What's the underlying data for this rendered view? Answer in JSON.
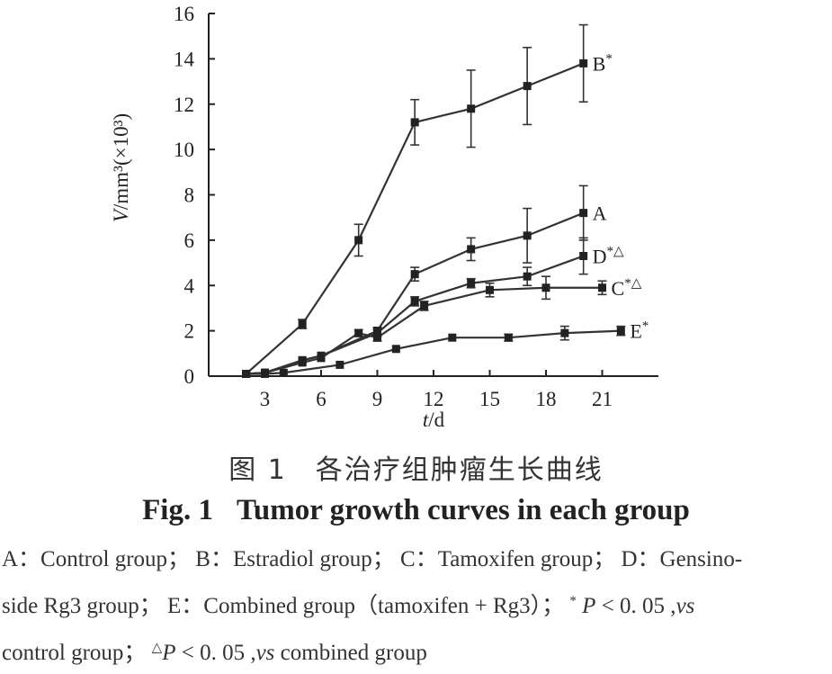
{
  "chart_data": {
    "type": "line",
    "xlabel": "t/d",
    "ylabel": "V/mm³(×10³)",
    "xlim": [
      0,
      24
    ],
    "ylim": [
      0,
      16
    ],
    "xticks": [
      3,
      6,
      9,
      12,
      15,
      18,
      21
    ],
    "yticks": [
      0,
      2,
      4,
      6,
      8,
      10,
      12,
      14,
      16
    ],
    "grid": false,
    "series": [
      {
        "name": "B*",
        "x": [
          2,
          5,
          8,
          11,
          14,
          17,
          20
        ],
        "y": [
          0.1,
          2.3,
          6.0,
          11.2,
          11.8,
          12.8,
          13.8
        ],
        "err": [
          0.1,
          0.2,
          0.7,
          1.0,
          1.7,
          1.7,
          1.7
        ]
      },
      {
        "name": "A",
        "x": [
          2,
          3,
          5,
          6,
          9,
          11,
          14,
          17,
          20
        ],
        "y": [
          0.1,
          0.15,
          0.7,
          0.9,
          2.0,
          4.5,
          5.6,
          6.2,
          7.2
        ],
        "err": [
          0.05,
          0.05,
          0.1,
          0.1,
          0.15,
          0.3,
          0.5,
          1.2,
          1.2
        ]
      },
      {
        "name": "D*△",
        "x": [
          2,
          3,
          5,
          6,
          9,
          11,
          14,
          17,
          20
        ],
        "y": [
          0.1,
          0.15,
          0.7,
          0.9,
          1.9,
          3.3,
          4.1,
          4.4,
          5.3
        ],
        "err": [
          0.05,
          0.05,
          0.1,
          0.1,
          0.15,
          0.2,
          0.2,
          0.4,
          0.8
        ]
      },
      {
        "name": "C*△",
        "x": [
          2,
          3,
          5,
          6,
          8,
          9,
          11.5,
          15,
          18,
          21
        ],
        "y": [
          0.1,
          0.15,
          0.6,
          0.8,
          1.9,
          1.7,
          3.1,
          3.8,
          3.9,
          3.9
        ],
        "err": [
          0.05,
          0.05,
          0.1,
          0.1,
          0.15,
          0.15,
          0.2,
          0.3,
          0.5,
          0.3
        ]
      },
      {
        "name": "E*",
        "x": [
          2,
          3,
          4,
          7,
          10,
          13,
          16,
          19,
          22
        ],
        "y": [
          0.1,
          0.1,
          0.15,
          0.5,
          1.2,
          1.7,
          1.7,
          1.9,
          2.0
        ],
        "err": [
          0.05,
          0.05,
          0.05,
          0.1,
          0.1,
          0.1,
          0.15,
          0.3,
          0.2
        ]
      }
    ]
  },
  "caption": {
    "cn": "图 1　各治疗组肿瘤生长曲线",
    "en_num": "Fig. 1",
    "en_title": "Tumor growth curves in each group"
  },
  "legend_note": {
    "line1": "A：Control group； B：Estradiol group； C：Tamoxifen group； D：Gensino-",
    "line2a": "side Rg3 group； E：Combined group（tamoxifen + Rg3）； ",
    "line2_mark": "*",
    "line2_p": " P",
    "line2b": " < 0. 05 ,",
    "line2_vs": "vs",
    "line3a": "control group； ",
    "line3_mark": "△",
    "line3_p": "P",
    "line3b": " < 0. 05 ,",
    "line3_vs": "vs",
    "line3c": " combined group"
  }
}
